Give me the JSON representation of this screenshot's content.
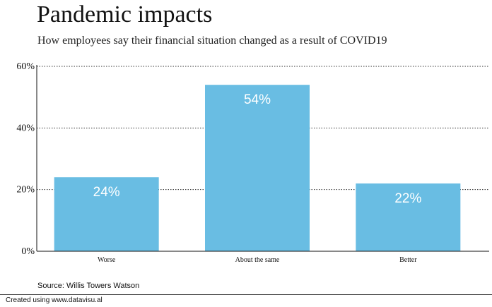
{
  "header": {
    "title": "Pandemic impacts",
    "subtitle": "How employees say their financial situation changed as a result of COVID19"
  },
  "source": "Source: Willis Towers Watson",
  "footer": "Created using www.datavisu.al",
  "chart_data": {
    "type": "bar",
    "categories": [
      "Worse",
      "About the same",
      "Better"
    ],
    "values": [
      24,
      54,
      22
    ],
    "data_labels": [
      "24%",
      "54%",
      "22%"
    ],
    "yticks": [
      0,
      20,
      40,
      60
    ],
    "ytick_labels": [
      "0%",
      "20%",
      "40%",
      "60%"
    ],
    "ylim": [
      0,
      60
    ],
    "grid": "dotted horizontal",
    "bar_color": "#69bde3",
    "title": "Pandemic impacts",
    "subtitle": "How employees say their financial situation changed as a result of COVID19"
  }
}
